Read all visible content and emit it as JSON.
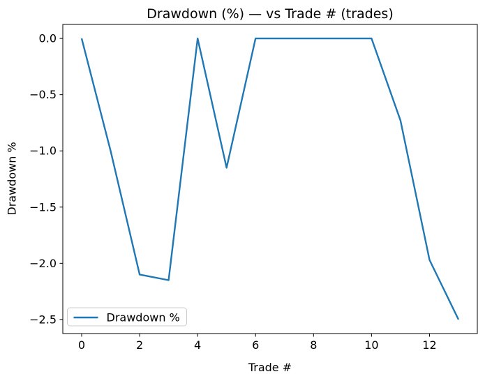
{
  "chart_data": {
    "type": "line",
    "title": "Drawdown (%) — vs Trade # (trades)",
    "xlabel": "Trade #",
    "ylabel": "Drawdown %",
    "x": [
      0,
      1,
      2,
      3,
      4,
      5,
      6,
      7,
      8,
      9,
      10,
      11,
      12,
      13
    ],
    "series": [
      {
        "name": "Drawdown %",
        "color": "#1f77b4",
        "values": [
          0.0,
          -1.0,
          -2.1,
          -2.15,
          0.0,
          -1.15,
          0.0,
          0.0,
          0.0,
          0.0,
          0.0,
          -0.73,
          -1.97,
          -2.5
        ]
      }
    ],
    "xlim": [
      -0.65,
      13.65
    ],
    "ylim": [
      -2.625,
      0.125
    ],
    "xticks": [
      0,
      2,
      4,
      6,
      8,
      10,
      12
    ],
    "xtick_labels": [
      "0",
      "2",
      "4",
      "6",
      "8",
      "10",
      "12"
    ],
    "yticks": [
      0.0,
      -0.5,
      -1.0,
      -1.5,
      -2.0,
      -2.5
    ],
    "ytick_labels": [
      "0.0",
      "−0.5",
      "−1.0",
      "−1.5",
      "−2.0",
      "−2.5"
    ],
    "grid": false,
    "legend": {
      "position": "lower left",
      "entries": [
        {
          "label": "Drawdown %",
          "color": "#1f77b4"
        }
      ]
    },
    "colors": {
      "line": "#1f77b4",
      "axes": "#000000",
      "legend_border": "#cccccc",
      "background": "#ffffff"
    }
  }
}
